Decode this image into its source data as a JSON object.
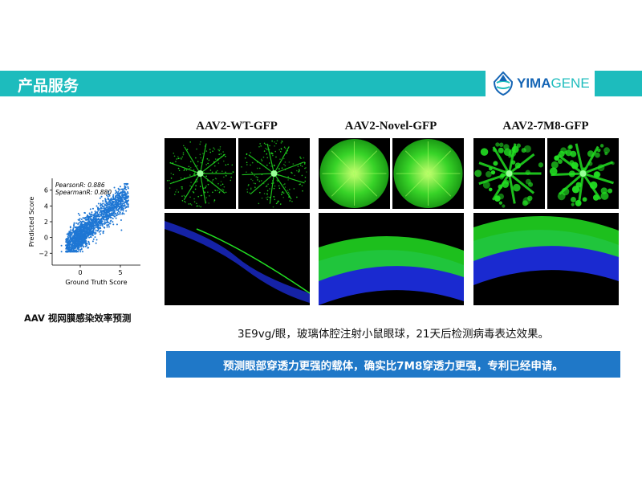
{
  "header": {
    "title": "产品服务",
    "logo_text_bold": "YIMA",
    "logo_text_light": "GENE"
  },
  "panels": [
    {
      "title": "AAV2-WT-GFP",
      "style": "sparse"
    },
    {
      "title": "AAV2-Novel-GFP",
      "style": "bright"
    },
    {
      "title": "AAV2-7M8-GFP",
      "style": "patchy"
    }
  ],
  "caption": "AAV 视网膜感染效率预测",
  "note": "3E9vg/眼，玻璃体腔注射小鼠眼球，21天后检测病毒表达效果。",
  "conclusion": "预测眼部穿透力更强的载体，确实比7M8穿透力更强，专利已经申请。",
  "colors": {
    "banner": "#1dbcbd",
    "conclusion_bar": "#1f78c8",
    "points": "#1f77d4",
    "gfp": "#22e022",
    "dapi": "#1a2ad0"
  },
  "chart_data": {
    "type": "scatter",
    "xlabel": "Ground Truth Score",
    "ylabel": "Predicted Score",
    "xlim": [
      -3.5,
      7.5
    ],
    "ylim": [
      -3.5,
      7.5
    ],
    "xticks": [
      0,
      5
    ],
    "yticks": [
      -2,
      0,
      2,
      4,
      6
    ],
    "xtick_labels": [
      "0",
      "5"
    ],
    "ytick_labels": [
      "−2",
      "0",
      "2",
      "4",
      "6"
    ],
    "annotations": [
      "PearsonR: 0.886",
      "SpearmanR: 0.880"
    ],
    "grid": false,
    "series": [
      {
        "color": "#1f77d4",
        "x_range": [
          -2.5,
          6.8
        ],
        "y_range": [
          -1.8,
          6.8
        ],
        "pearson_r": 0.886
      }
    ]
  }
}
